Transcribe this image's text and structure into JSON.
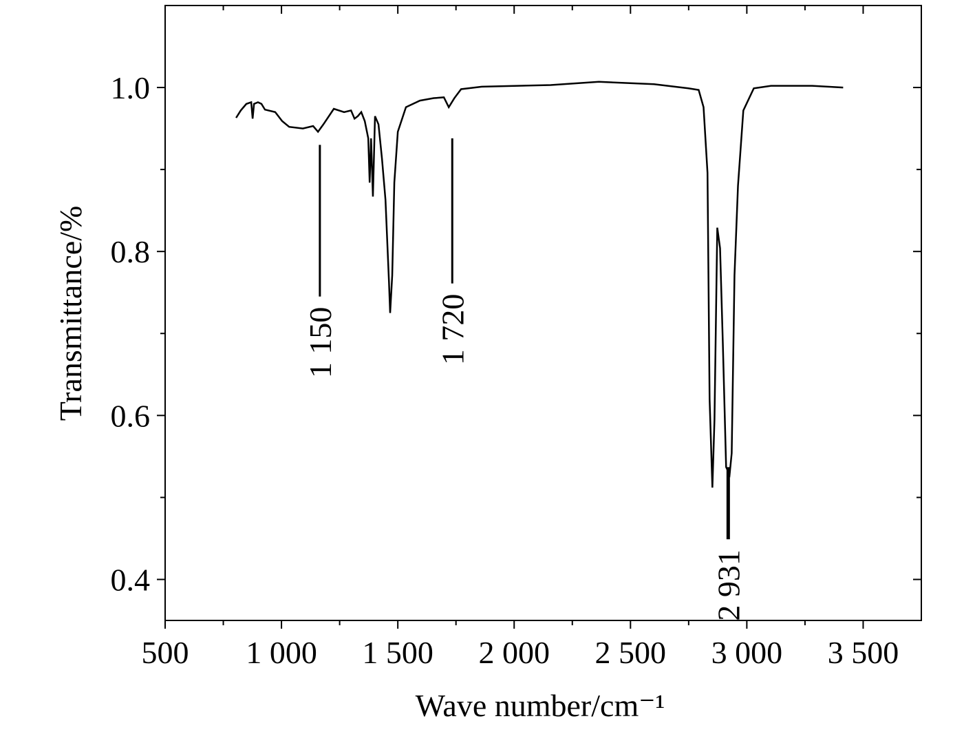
{
  "chart_data": {
    "type": "line",
    "xlabel": "Wave number/cm⁻¹",
    "ylabel": "Transmittance/%",
    "xlim": [
      500,
      3750
    ],
    "ylim": [
      0.35,
      1.1
    ],
    "xticks": [
      500,
      {
        "value": 1000,
        "label": "1 000"
      },
      {
        "value": 1500,
        "label": "1 500"
      },
      {
        "value": 2000,
        "label": "2 000"
      },
      {
        "value": 2500,
        "label": "2 500"
      },
      {
        "value": 3000,
        "label": "3 000"
      },
      {
        "value": 3500,
        "label": "3 500"
      }
    ],
    "xminorticks": [
      750,
      1250,
      1750,
      2250,
      2750,
      3250
    ],
    "yticks": [
      0.4,
      0.6,
      0.8,
      {
        "value": 1,
        "label": "1.0"
      }
    ],
    "yminorticks": [
      0.5,
      0.7,
      0.9
    ],
    "series": [
      {
        "color": "#000000",
        "x": [
          805,
          825,
          849,
          870,
          876,
          882,
          899,
          914,
          929,
          973,
          1003,
          1033,
          1092,
          1136,
          1157,
          1180,
          1225,
          1269,
          1299,
          1314,
          1328,
          1343,
          1358,
          1373,
          1379,
          1385,
          1393,
          1402,
          1417,
          1432,
          1447,
          1462,
          1467,
          1476,
          1485,
          1500,
          1535,
          1595,
          1654,
          1698,
          1719,
          1743,
          1772,
          1861,
          2157,
          2364,
          2601,
          2749,
          2793,
          2814,
          2831,
          2840,
          2852,
          2861,
          2873,
          2885,
          2897,
          2911,
          2926,
          2935,
          2947,
          2962,
          2985,
          3030,
          3104,
          3281,
          3414
        ],
        "values": [
          0.963,
          0.972,
          0.98,
          0.982,
          0.962,
          0.98,
          0.982,
          0.98,
          0.973,
          0.97,
          0.959,
          0.952,
          0.95,
          0.953,
          0.946,
          0.955,
          0.974,
          0.97,
          0.972,
          0.962,
          0.965,
          0.97,
          0.959,
          0.938,
          0.884,
          0.938,
          0.867,
          0.965,
          0.955,
          0.913,
          0.863,
          0.763,
          0.725,
          0.771,
          0.884,
          0.946,
          0.976,
          0.984,
          0.987,
          0.988,
          0.976,
          0.987,
          0.998,
          1.001,
          1.003,
          1.007,
          1.004,
          0.999,
          0.997,
          0.976,
          0.896,
          0.62,
          0.512,
          0.595,
          0.829,
          0.804,
          0.687,
          0.537,
          0.528,
          0.554,
          0.771,
          0.88,
          0.972,
          0.999,
          1.002,
          1.002,
          1
        ]
      }
    ],
    "annotations": [
      {
        "text": "1 150",
        "x": 1165,
        "y1": 0.93,
        "y2": 0.745
      },
      {
        "text": "1 720",
        "x": 1734,
        "y1": 0.938,
        "y2": 0.761
      },
      {
        "text": "2 931",
        "x": 2920,
        "y1": 0.537,
        "y2": 0.449
      }
    ]
  }
}
